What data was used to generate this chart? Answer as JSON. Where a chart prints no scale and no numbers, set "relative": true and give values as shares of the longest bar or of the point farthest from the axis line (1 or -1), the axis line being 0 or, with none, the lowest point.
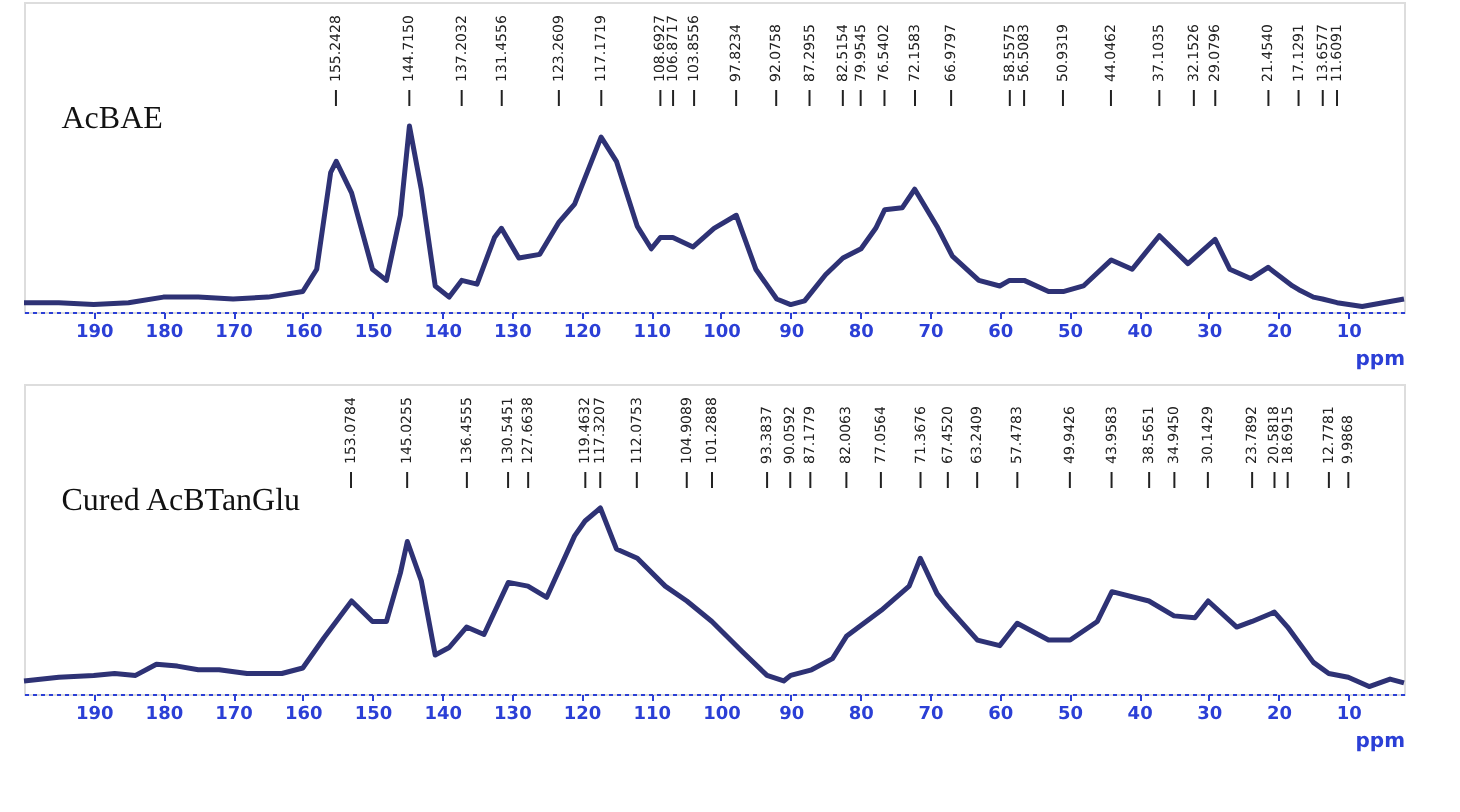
{
  "chart_data": [
    {
      "type": "line",
      "title": "AcBAE",
      "xlabel": "ppm",
      "relative": true,
      "grid": false,
      "xlim": [
        200,
        2
      ],
      "xticks": [
        190,
        180,
        170,
        160,
        150,
        140,
        130,
        120,
        110,
        100,
        90,
        80,
        70,
        60,
        50,
        40,
        30,
        20,
        10
      ],
      "x": [
        200,
        195,
        190,
        185,
        180,
        175,
        170,
        165,
        160,
        158,
        156,
        155.2,
        153,
        150,
        148,
        146,
        144.7,
        143,
        141,
        139,
        137.2,
        135,
        132.5,
        131.5,
        129,
        126,
        123.3,
        121,
        117.2,
        115,
        112,
        110,
        108.7,
        106.9,
        104,
        101,
        97.8,
        95,
        92,
        90,
        88,
        85,
        82.5,
        79.9,
        77.8,
        76.5,
        74,
        72.2,
        69,
        66.8,
        63,
        60,
        58.6,
        56.5,
        53,
        50.9,
        48,
        44,
        41,
        37.1,
        33,
        29.1,
        27,
        24,
        21.5,
        18,
        17.1,
        15,
        13.7,
        11.6,
        8,
        5,
        2
      ],
      "series": [
        {
          "color": "#2e3275",
          "values": [
            0.05,
            0.05,
            0.04,
            0.05,
            0.08,
            0.08,
            0.07,
            0.08,
            0.11,
            0.23,
            0.75,
            0.81,
            0.64,
            0.23,
            0.17,
            0.52,
            1.0,
            0.66,
            0.14,
            0.08,
            0.17,
            0.15,
            0.4,
            0.45,
            0.29,
            0.31,
            0.48,
            0.58,
            0.94,
            0.81,
            0.46,
            0.34,
            0.4,
            0.4,
            0.35,
            0.45,
            0.52,
            0.23,
            0.07,
            0.04,
            0.06,
            0.2,
            0.29,
            0.34,
            0.45,
            0.55,
            0.56,
            0.66,
            0.46,
            0.3,
            0.17,
            0.14,
            0.17,
            0.17,
            0.11,
            0.11,
            0.14,
            0.28,
            0.23,
            0.41,
            0.26,
            0.39,
            0.23,
            0.18,
            0.24,
            0.14,
            0.12,
            0.08,
            0.07,
            0.05,
            0.03,
            0.05,
            0.07
          ]
        }
      ],
      "annotations": [
        {
          "text": "155.2428",
          "x": 155.2428
        },
        {
          "text": "144.7150",
          "x": 144.715
        },
        {
          "text": "137.2032",
          "x": 137.2032
        },
        {
          "text": "131.4556",
          "x": 131.4556
        },
        {
          "text": "123.2609",
          "x": 123.2609
        },
        {
          "text": "117.1719",
          "x": 117.1719
        },
        {
          "text": "108.6927",
          "x": 108.6927
        },
        {
          "text": "106.8717",
          "x": 106.8717
        },
        {
          "text": "103.8556",
          "x": 103.8556
        },
        {
          "text": "97.8234",
          "x": 97.8234
        },
        {
          "text": "92.0758",
          "x": 92.0758
        },
        {
          "text": "87.2955",
          "x": 87.2955
        },
        {
          "text": "82.5154",
          "x": 82.5154
        },
        {
          "text": "79.9545",
          "x": 79.9545
        },
        {
          "text": "76.5402",
          "x": 76.5402
        },
        {
          "text": "72.1583",
          "x": 72.1583
        },
        {
          "text": "66.9797",
          "x": 66.9797
        },
        {
          "text": "58.5575",
          "x": 58.5575
        },
        {
          "text": "56.5083",
          "x": 56.5083
        },
        {
          "text": "50.9319",
          "x": 50.9319
        },
        {
          "text": "44.0462",
          "x": 44.0462
        },
        {
          "text": "37.1035",
          "x": 37.1035
        },
        {
          "text": "32.1526",
          "x": 32.1526
        },
        {
          "text": "29.0796",
          "x": 29.0796
        },
        {
          "text": "21.4540",
          "x": 21.454
        },
        {
          "text": "17.1291",
          "x": 17.1291
        },
        {
          "text": "13.6577",
          "x": 13.6577
        },
        {
          "text": "11.6091",
          "x": 11.6091
        }
      ]
    },
    {
      "type": "line",
      "title": "Cured AcBTanGlu",
      "xlabel": "ppm",
      "relative": true,
      "grid": false,
      "xlim": [
        200,
        2
      ],
      "xticks": [
        190,
        180,
        170,
        160,
        150,
        140,
        130,
        120,
        110,
        100,
        90,
        80,
        70,
        60,
        50,
        40,
        30,
        20,
        10
      ],
      "x": [
        200,
        195,
        190,
        187,
        184,
        181,
        178,
        175,
        172,
        168,
        163,
        160,
        157,
        153,
        150,
        148,
        146,
        145,
        143,
        141,
        139,
        136.5,
        134,
        130.5,
        127.7,
        125,
        121,
        119.5,
        117.3,
        115,
        112,
        108,
        104.9,
        101.3,
        97,
        93.4,
        91,
        90,
        87,
        84,
        82,
        77,
        73,
        71.4,
        69,
        67.5,
        63.2,
        60,
        57.5,
        53,
        49.9,
        46,
        43.9,
        38.6,
        35,
        32,
        30.1,
        26,
        23.8,
        20.6,
        18.7,
        15,
        12.8,
        10,
        7,
        4,
        2
      ],
      "series": [
        {
          "color": "#2e3275",
          "values": [
            0.07,
            0.09,
            0.1,
            0.11,
            0.1,
            0.16,
            0.15,
            0.13,
            0.13,
            0.11,
            0.11,
            0.14,
            0.3,
            0.5,
            0.39,
            0.39,
            0.65,
            0.82,
            0.61,
            0.21,
            0.25,
            0.36,
            0.32,
            0.6,
            0.58,
            0.52,
            0.85,
            0.93,
            1.0,
            0.78,
            0.73,
            0.58,
            0.5,
            0.39,
            0.23,
            0.1,
            0.07,
            0.1,
            0.13,
            0.19,
            0.31,
            0.45,
            0.58,
            0.73,
            0.54,
            0.47,
            0.29,
            0.26,
            0.38,
            0.29,
            0.29,
            0.39,
            0.55,
            0.5,
            0.42,
            0.41,
            0.5,
            0.36,
            0.39,
            0.44,
            0.36,
            0.17,
            0.11,
            0.09,
            0.04,
            0.08,
            0.06
          ]
        }
      ],
      "annotations": [
        {
          "text": "153.0784",
          "x": 153.0784
        },
        {
          "text": "145.0255",
          "x": 145.0255
        },
        {
          "text": "136.4555",
          "x": 136.4555
        },
        {
          "text": "130.5451",
          "x": 130.5451
        },
        {
          "text": "127.6638",
          "x": 127.6638
        },
        {
          "text": "119.4632",
          "x": 119.4632
        },
        {
          "text": "117.3207",
          "x": 117.3207
        },
        {
          "text": "112.0753",
          "x": 112.0753
        },
        {
          "text": "104.9089",
          "x": 104.9089
        },
        {
          "text": "101.2888",
          "x": 101.2888
        },
        {
          "text": "93.3837",
          "x": 93.3837
        },
        {
          "text": "90.0592",
          "x": 90.0592
        },
        {
          "text": "87.1779",
          "x": 87.1779
        },
        {
          "text": "82.0063",
          "x": 82.0063
        },
        {
          "text": "77.0564",
          "x": 77.0564
        },
        {
          "text": "71.3676",
          "x": 71.3676
        },
        {
          "text": "67.4520",
          "x": 67.452
        },
        {
          "text": "63.2409",
          "x": 63.2409
        },
        {
          "text": "57.4783",
          "x": 57.4783
        },
        {
          "text": "49.9426",
          "x": 49.9426
        },
        {
          "text": "43.9583",
          "x": 43.9583
        },
        {
          "text": "38.5651",
          "x": 38.5651
        },
        {
          "text": "34.9450",
          "x": 34.945
        },
        {
          "text": "30.1429",
          "x": 30.1429
        },
        {
          "text": "23.7892",
          "x": 23.7892
        },
        {
          "text": "20.5818",
          "x": 20.5818
        },
        {
          "text": "18.6915",
          "x": 18.6915
        },
        {
          "text": "12.7781",
          "x": 12.7781
        },
        {
          "text": "9.9868",
          "x": 9.9868
        }
      ]
    }
  ]
}
